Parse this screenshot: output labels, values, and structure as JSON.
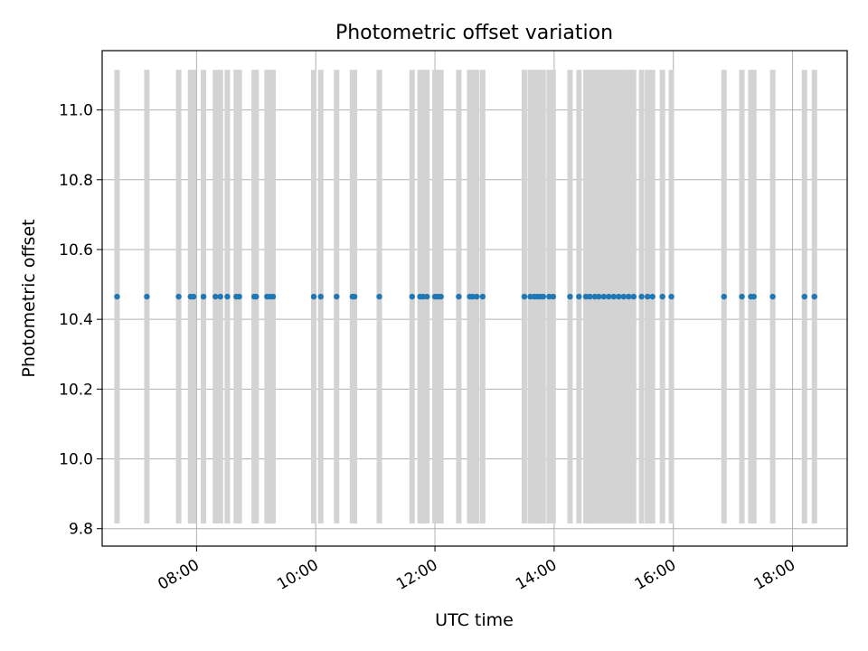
{
  "chart_data": {
    "type": "scatter",
    "title": "Photometric offset variation",
    "xlabel": "UTC time",
    "ylabel": "Photometric offset",
    "grid": true,
    "x_axis": {
      "type": "time",
      "range": [
        "06:25",
        "18:55"
      ],
      "ticks": [
        "08:00",
        "10:00",
        "12:00",
        "14:00",
        "16:00",
        "18:00"
      ]
    },
    "y_axis": {
      "range": [
        9.75,
        11.17
      ],
      "ticks": [
        "9.8",
        "10.0",
        "10.2",
        "10.4",
        "10.6",
        "10.8",
        "11.0"
      ]
    },
    "bands": {
      "color": "#d3d3d3",
      "y_range": [
        9.815,
        11.115
      ]
    },
    "series": [
      {
        "color": "#1f77b4",
        "y_value": 10.465,
        "x": [
          "06:40",
          "07:10",
          "07:42",
          "07:54",
          "07:57",
          "08:07",
          "08:19",
          "08:24",
          "08:31",
          "08:40",
          "08:43",
          "08:58",
          "09:00",
          "09:11",
          "09:14",
          "09:17",
          "09:58",
          "10:05",
          "10:21",
          "10:37",
          "10:39",
          "11:04",
          "11:37",
          "11:45",
          "11:48",
          "11:52",
          "12:00",
          "12:03",
          "12:06",
          "12:24",
          "12:35",
          "12:38",
          "12:42",
          "12:48",
          "13:30",
          "13:36",
          "13:40",
          "13:43",
          "13:46",
          "13:49",
          "13:55",
          "13:59",
          "14:16",
          "14:25",
          "14:32",
          "14:36",
          "14:41",
          "14:45",
          "14:50",
          "14:55",
          "15:00",
          "15:05",
          "15:10",
          "15:15",
          "15:20",
          "15:28",
          "15:34",
          "15:39",
          "15:49",
          "15:58",
          "16:51",
          "17:09",
          "17:18",
          "17:21",
          "17:40",
          "18:12",
          "18:22"
        ]
      }
    ]
  }
}
